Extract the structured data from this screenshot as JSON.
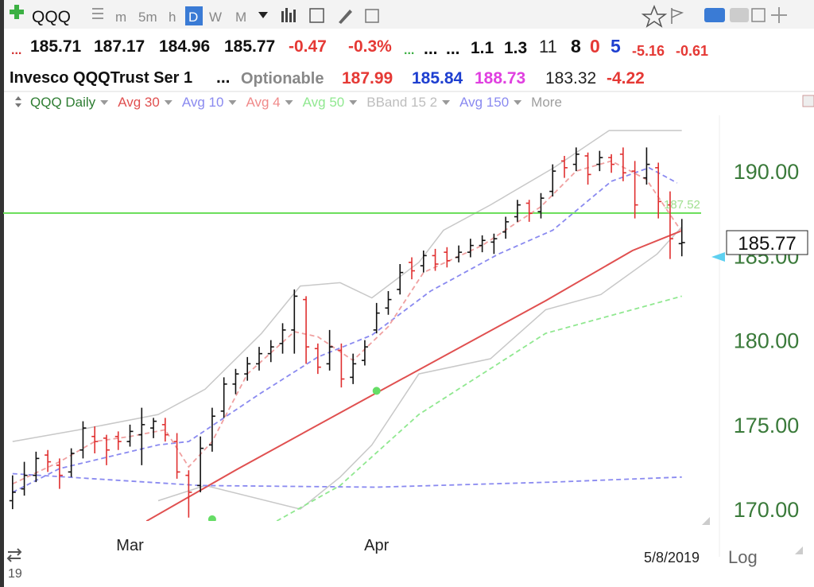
{
  "toolbar": {
    "symbol": "QQQ",
    "intervals": [
      "m",
      "5m",
      "h",
      "D",
      "W",
      "M"
    ]
  },
  "quote": {
    "markers": [
      "...",
      "...",
      "...",
      "..."
    ],
    "values": [
      185.71,
      187.17,
      184.96,
      185.77
    ],
    "change": -0.47,
    "change_pct": "-0.3%",
    "fields": [
      1.1,
      1.3,
      11,
      8,
      0,
      5
    ],
    "extra": [
      -5.16,
      -0.61
    ]
  },
  "info": {
    "name": "Invesco QQQTrust Ser 1",
    "dots": "...",
    "optionable": "Optionable",
    "values": [
      187.99,
      185.84,
      188.73,
      183.32,
      -4.22
    ]
  },
  "legend": [
    {
      "name": "QQQ Daily",
      "color": "#2e7d32"
    },
    {
      "name": "Avg 30",
      "color": "#e05050"
    },
    {
      "name": "Avg 10",
      "color": "#8a8af0"
    },
    {
      "name": "Avg 4",
      "color": "#f08a8a"
    },
    {
      "name": "Avg 50",
      "color": "#90e890"
    },
    {
      "name": "BBand 15 2",
      "color": "#bdbdbd"
    },
    {
      "name": "Avg 150",
      "color": "#8a8af0"
    },
    {
      "name": "More",
      "color": "#9e9e9e"
    }
  ],
  "chart": {
    "type": "ohlc",
    "xlim": [
      -0.8,
      60.2
    ],
    "ylim": [
      169.3,
      193.3
    ],
    "yticks": [
      {
        "value": 170,
        "label": "170.00"
      },
      {
        "value": 175,
        "label": "175.00"
      },
      {
        "value": 180,
        "label": "180.00"
      },
      {
        "value": 185,
        "label": "185.00"
      },
      {
        "value": 190,
        "label": "190.00"
      }
    ],
    "xticks": [
      {
        "value": 10,
        "label": "Mar"
      },
      {
        "value": 31,
        "label": "Apr"
      }
    ],
    "up_color": "#111111",
    "down_color": "#e03030",
    "bars": {
      "open": [
        170.5,
        171.2,
        172.0,
        173.2,
        172.6,
        172.2,
        173.5,
        174.3,
        174.2,
        174.3,
        174.0,
        174.4,
        174.8,
        175.0,
        174.0,
        172.0,
        171.4,
        173.8,
        175.8,
        177.4,
        178.0,
        178.6,
        179.2,
        179.8,
        180.6,
        182.4,
        179.5,
        178.6,
        179.4,
        177.8,
        178.8,
        180.6,
        181.9,
        183.0,
        184.6,
        184.4,
        185.0,
        185.2,
        184.9,
        185.2,
        185.6,
        185.8,
        186.4,
        187.3,
        188.1,
        187.6,
        188.8,
        190.6,
        190.4,
        190.9,
        190.4,
        190.8,
        191.0,
        190.0,
        189.6,
        190.2,
        188.0,
        185.71
      ],
      "high": [
        172.0,
        172.8,
        173.4,
        173.5,
        173.0,
        173.6,
        175.2,
        174.9,
        174.4,
        174.6,
        175.0,
        176.0,
        175.4,
        175.4,
        174.5,
        172.3,
        174.3,
        176.0,
        177.8,
        178.3,
        179.0,
        179.6,
        180.0,
        181.0,
        183.0,
        182.6,
        179.8,
        180.6,
        179.8,
        179.2,
        180.0,
        182.2,
        182.9,
        184.5,
        184.9,
        185.3,
        185.4,
        185.5,
        185.6,
        186.0,
        186.2,
        186.3,
        187.3,
        188.3,
        188.3,
        188.7,
        190.4,
        190.9,
        191.4,
        191.1,
        191.2,
        191.0,
        191.4,
        190.6,
        191.4,
        190.5,
        188.8,
        187.17
      ],
      "low": [
        170.0,
        170.8,
        171.6,
        172.2,
        171.2,
        171.9,
        173.0,
        173.3,
        172.6,
        173.5,
        173.7,
        172.6,
        174.2,
        174.0,
        171.8,
        169.5,
        171.0,
        173.4,
        175.4,
        176.8,
        177.6,
        178.2,
        178.7,
        179.2,
        179.2,
        178.6,
        178.0,
        178.2,
        177.2,
        177.4,
        178.5,
        180.4,
        181.5,
        182.7,
        183.6,
        184.0,
        184.1,
        184.3,
        184.6,
        184.9,
        185.2,
        185.1,
        186.0,
        187.0,
        187.0,
        187.2,
        188.5,
        189.6,
        190.0,
        189.2,
        190.0,
        189.9,
        189.4,
        187.2,
        189.2,
        187.2,
        184.8,
        184.96
      ],
      "close": [
        171.0,
        172.0,
        173.0,
        172.8,
        172.0,
        173.3,
        174.8,
        174.0,
        173.5,
        174.0,
        174.6,
        175.0,
        175.2,
        174.4,
        172.2,
        171.0,
        173.6,
        175.5,
        177.4,
        178.0,
        178.6,
        179.2,
        179.6,
        180.6,
        182.6,
        179.6,
        178.4,
        179.6,
        177.7,
        178.6,
        179.6,
        181.6,
        182.4,
        184.0,
        184.1,
        185.0,
        184.5,
        184.7,
        185.2,
        185.6,
        185.9,
        186.0,
        187.0,
        188.0,
        187.5,
        188.4,
        190.0,
        190.2,
        191.0,
        189.8,
        190.8,
        190.4,
        189.9,
        188.0,
        190.4,
        188.2,
        186.0,
        185.77
      ]
    },
    "bands": {
      "color": "#c8c8c8",
      "fill": "#f7eef6",
      "upper": {
        "x": [
          0,
          5.7,
          12.4,
          16.4,
          21.2,
          24.5,
          27.9,
          30.6,
          34.6,
          36.7,
          40.7,
          46.1,
          50.8,
          57
        ],
        "values": [
          174.0,
          174.7,
          175.6,
          177.1,
          180.4,
          183.2,
          183.4,
          182.5,
          184.6,
          186.5,
          188.0,
          190.2,
          192.4,
          192.4
        ]
      },
      "lower": {
        "x": [
          12.4,
          16.4,
          24.5,
          27.9,
          30.6,
          34.6,
          40.7,
          45.4,
          50.1,
          54.9,
          57
        ],
        "values": [
          170.5,
          171.4,
          170.0,
          171.9,
          173.8,
          178.0,
          178.9,
          181.8,
          182.7,
          185.1,
          186.7
        ]
      }
    },
    "lines": [
      {
        "name": "Avg 30",
        "color": "#e05050",
        "dash": false,
        "x": [
          11.4,
          19.1,
          30.6,
          45.4,
          52.8,
          57
        ],
        "values": [
          169.29,
          172.35,
          176.73,
          182.33,
          185.3,
          186.47
        ]
      },
      {
        "name": "Avg 10",
        "color": "#8a8af0",
        "dash": true,
        "x": [
          0,
          4,
          12.4,
          15,
          21,
          26,
          30.6,
          35.6,
          41.4,
          46,
          51,
          54.2,
          56.6
        ],
        "values": [
          171.0,
          172.4,
          173.8,
          174.0,
          176.8,
          179.0,
          180.3,
          182.9,
          185.1,
          186.5,
          189.4,
          190.2,
          189.3
        ]
      },
      {
        "name": "Avg 4",
        "color": "#f0a0a0",
        "dash": true,
        "x": [
          0,
          4,
          7,
          10,
          13,
          15,
          17,
          20,
          24,
          26,
          29,
          32,
          35,
          40,
          45,
          48,
          51,
          54,
          57
        ],
        "values": [
          171.5,
          172.8,
          174.0,
          174.3,
          174.7,
          172.5,
          174.0,
          178.0,
          180.5,
          180.2,
          178.8,
          180.8,
          184.0,
          185.6,
          187.9,
          190.0,
          190.6,
          189.5,
          186.4
        ]
      },
      {
        "name": "Avg 50",
        "color": "#90e890",
        "dash": true,
        "x": [
          22.5,
          27.9,
          34.6,
          45.4,
          57
        ],
        "values": [
          169.3,
          171.4,
          175.6,
          180.4,
          182.6
        ]
      },
      {
        "name": "Avg 150",
        "color": "#8a8af0",
        "dash": true,
        "x": [
          0,
          16,
          31,
          46,
          57
        ],
        "values": [
          172.1,
          171.4,
          171.3,
          171.6,
          171.9
        ]
      }
    ],
    "signals": {
      "color": "#66dd66",
      "x": [
        17,
        31
      ],
      "values": [
        169.4,
        177.0
      ]
    },
    "hline": {
      "value": 187.52,
      "color": "#66dd55"
    },
    "last_price": 185.77,
    "date": "5/8/2019",
    "scale": "Log",
    "corner": "19"
  }
}
